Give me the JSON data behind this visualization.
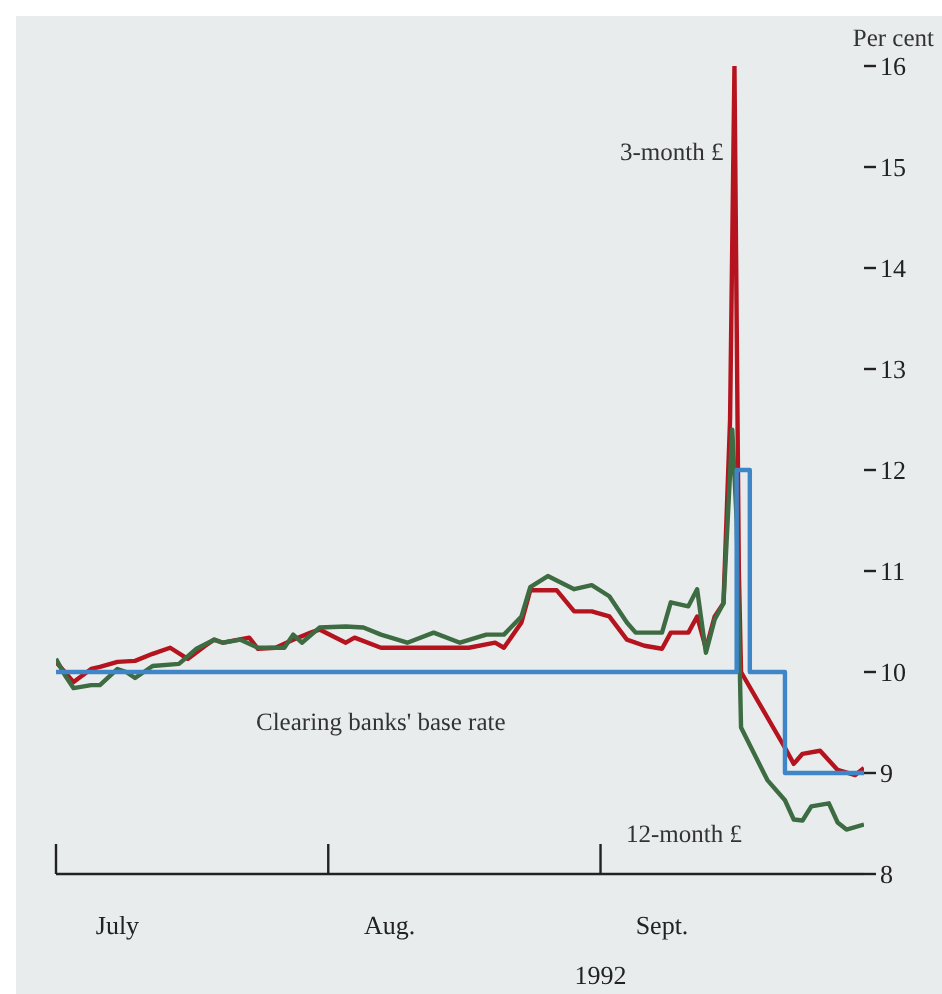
{
  "chart_data": {
    "type": "line",
    "xlabel": "1992",
    "ylabel": "Per cent",
    "xlim": [
      "1992-07-01",
      "1992-10-01"
    ],
    "xticks": [
      {
        "value": "1992-07-01",
        "label": null
      },
      {
        "value": "1992-07-08",
        "label": "July"
      },
      {
        "value": "1992-08-01",
        "label": null
      },
      {
        "value": "1992-08-08",
        "label": "Aug."
      },
      {
        "value": "1992-09-01",
        "label": null
      },
      {
        "value": "1992-09-08",
        "label": "Sept."
      }
    ],
    "ylim": [
      8,
      16
    ],
    "yticks": [
      8,
      9,
      10,
      11,
      12,
      13,
      14,
      15,
      16
    ],
    "legend": false,
    "grid": false,
    "series": [
      {
        "name": "3-month £",
        "color": "#b5141f",
        "x": [
          "1992-07-01",
          "1992-07-02",
          "1992-07-03",
          "1992-07-05",
          "1992-07-06",
          "1992-07-08",
          "1992-07-10",
          "1992-07-12",
          "1992-07-14",
          "1992-07-16",
          "1992-07-18",
          "1992-07-19",
          "1992-07-20",
          "1992-07-23",
          "1992-07-24",
          "1992-07-26",
          "1992-07-28",
          "1992-07-30",
          "1992-07-31",
          "1992-08-03",
          "1992-08-04",
          "1992-08-07",
          "1992-08-11",
          "1992-08-14",
          "1992-08-17",
          "1992-08-20",
          "1992-08-21",
          "1992-08-23",
          "1992-08-24",
          "1992-08-27",
          "1992-08-29",
          "1992-08-31",
          "1992-09-02",
          "1992-09-04",
          "1992-09-06",
          "1992-09-08",
          "1992-09-09",
          "1992-09-11",
          "1992-09-12",
          "1992-09-13",
          "1992-09-14",
          "1992-09-15",
          "1992-09-15T18:00",
          "1992-09-16T06:00",
          "1992-09-16T18:00",
          "1992-09-17",
          "1992-09-22",
          "1992-09-23",
          "1992-09-24",
          "1992-09-26",
          "1992-09-28",
          "1992-09-30",
          "1992-10-01"
        ],
        "values": [
          10.1,
          10.0,
          9.9,
          10.03,
          10.05,
          10.1,
          10.11,
          10.18,
          10.24,
          10.13,
          10.26,
          10.32,
          10.29,
          10.34,
          10.23,
          10.24,
          10.32,
          10.39,
          10.42,
          10.29,
          10.34,
          10.24,
          10.24,
          10.24,
          10.24,
          10.29,
          10.24,
          10.49,
          10.81,
          10.81,
          10.6,
          10.6,
          10.55,
          10.32,
          10.26,
          10.23,
          10.39,
          10.39,
          10.55,
          10.23,
          10.55,
          10.68,
          12.5,
          16.0,
          11.0,
          10.0,
          9.25,
          9.09,
          9.19,
          9.22,
          9.03,
          8.98,
          9.05
        ]
      },
      {
        "name": "12-month £",
        "color": "#3d6b42",
        "x": [
          "1992-07-01",
          "1992-07-02",
          "1992-07-03",
          "1992-07-05",
          "1992-07-06",
          "1992-07-08",
          "1992-07-09",
          "1992-07-10",
          "1992-07-12",
          "1992-07-15",
          "1992-07-17",
          "1992-07-19",
          "1992-07-20",
          "1992-07-22",
          "1992-07-24",
          "1992-07-27",
          "1992-07-28",
          "1992-07-29",
          "1992-07-31",
          "1992-08-03",
          "1992-08-05",
          "1992-08-07",
          "1992-08-10",
          "1992-08-13",
          "1992-08-16",
          "1992-08-19",
          "1992-08-21",
          "1992-08-23",
          "1992-08-24",
          "1992-08-26",
          "1992-08-29",
          "1992-08-31",
          "1992-09-02",
          "1992-09-04",
          "1992-09-05",
          "1992-09-08",
          "1992-09-09",
          "1992-09-11",
          "1992-09-12",
          "1992-09-13",
          "1992-09-14",
          "1992-09-15",
          "1992-09-16",
          "1992-09-16T12:00",
          "1992-09-17",
          "1992-09-20",
          "1992-09-22",
          "1992-09-23",
          "1992-09-24",
          "1992-09-25",
          "1992-09-27",
          "1992-09-28",
          "1992-09-29",
          "1992-10-01"
        ],
        "values": [
          10.13,
          9.97,
          9.84,
          9.87,
          9.87,
          10.03,
          10.0,
          9.94,
          10.06,
          10.08,
          10.23,
          10.32,
          10.29,
          10.32,
          10.24,
          10.24,
          10.37,
          10.29,
          10.44,
          10.45,
          10.44,
          10.37,
          10.29,
          10.39,
          10.29,
          10.37,
          10.37,
          10.55,
          10.84,
          10.95,
          10.82,
          10.86,
          10.75,
          10.49,
          10.39,
          10.39,
          10.69,
          10.65,
          10.82,
          10.19,
          10.52,
          10.68,
          12.4,
          11.5,
          9.45,
          8.93,
          8.73,
          8.54,
          8.53,
          8.67,
          8.7,
          8.51,
          8.44,
          8.49
        ]
      },
      {
        "name": "Clearing banks' base rate",
        "type": "step",
        "color": "#3f86c8",
        "x": [
          "1992-07-01",
          "1992-09-16T12:00",
          "1992-09-18",
          "1992-09-22",
          "1992-10-01"
        ],
        "values": [
          10,
          12,
          10,
          9,
          9
        ]
      }
    ]
  }
}
